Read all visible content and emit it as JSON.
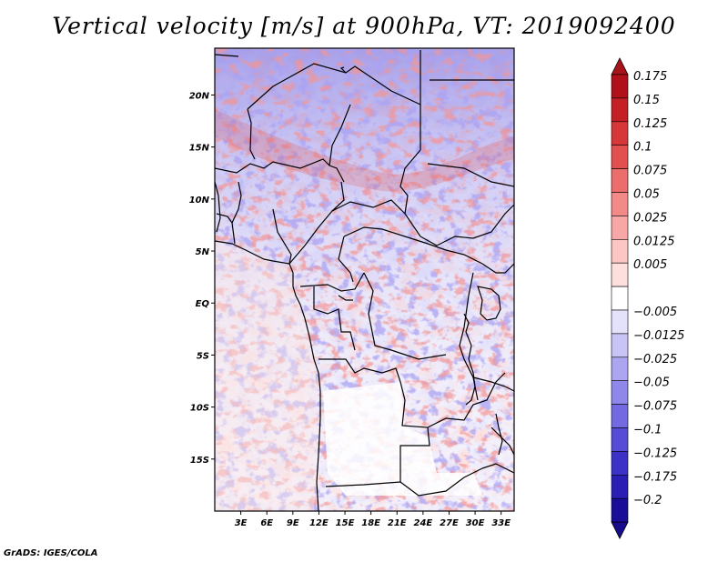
{
  "title": "Vertical velocity [m/s] at 900hPa, VT: 2019092400",
  "footer": "GrADS: IGES/COLA",
  "map": {
    "lon_range": [
      0,
      34.5
    ],
    "lat_range": [
      -20,
      24.5
    ],
    "lat_ticks": [
      {
        "value": 20,
        "label": "20N"
      },
      {
        "value": 15,
        "label": "15N"
      },
      {
        "value": 10,
        "label": "10N"
      },
      {
        "value": 5,
        "label": "5N"
      },
      {
        "value": 0,
        "label": "EQ"
      },
      {
        "value": -5,
        "label": "5S"
      },
      {
        "value": -10,
        "label": "10S"
      },
      {
        "value": -15,
        "label": "15S"
      }
    ],
    "lon_ticks": [
      {
        "value": 3,
        "label": "3E"
      },
      {
        "value": 6,
        "label": "6E"
      },
      {
        "value": 9,
        "label": "9E"
      },
      {
        "value": 12,
        "label": "12E"
      },
      {
        "value": 15,
        "label": "15E"
      },
      {
        "value": 18,
        "label": "18E"
      },
      {
        "value": 21,
        "label": "21E"
      },
      {
        "value": 24,
        "label": "24E"
      },
      {
        "value": 27,
        "label": "27E"
      },
      {
        "value": 30,
        "label": "30E"
      },
      {
        "value": 33,
        "label": "33E"
      }
    ]
  },
  "colorbar": {
    "levels": [
      {
        "label": "0.175",
        "color": "#b0101a"
      },
      {
        "label": "0.15",
        "color": "#c41f24"
      },
      {
        "label": "0.125",
        "color": "#d6383a"
      },
      {
        "label": "0.1",
        "color": "#e35050"
      },
      {
        "label": "0.075",
        "color": "#ec6e6c"
      },
      {
        "label": "0.05",
        "color": "#f28a88"
      },
      {
        "label": "0.025",
        "color": "#f7a8a6"
      },
      {
        "label": "0.0125",
        "color": "#fbc6c4"
      },
      {
        "label": "0.005",
        "color": "#fde0de"
      },
      {
        "label": "",
        "color": "#ffffff"
      },
      {
        "label": "−0.005",
        "color": "#e4e2fb"
      },
      {
        "label": "−0.0125",
        "color": "#c8c4f6"
      },
      {
        "label": "−0.025",
        "color": "#aca6f1"
      },
      {
        "label": "−0.05",
        "color": "#8f88ea"
      },
      {
        "label": "−0.075",
        "color": "#736ae1"
      },
      {
        "label": "−0.1",
        "color": "#564cd6"
      },
      {
        "label": "−0.125",
        "color": "#3d32c8"
      },
      {
        "label": "−0.175",
        "color": "#2a1eb4"
      },
      {
        "label": "−0.2",
        "color": "#1a0e98"
      }
    ],
    "top_color": "#a8141c",
    "bottom_color": "#180c8c"
  }
}
